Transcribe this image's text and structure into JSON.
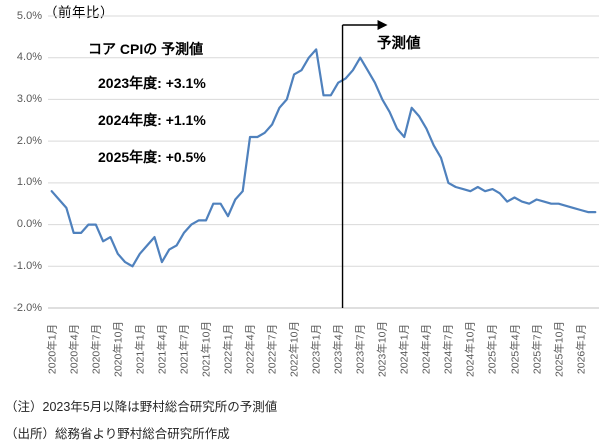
{
  "title": "（前年比）",
  "annotation": {
    "heading": "コア CPIの 予測値",
    "lines": [
      "2023年度: +3.1%",
      "2024年度: +1.1%",
      "2025年度: +0.5%"
    ]
  },
  "forecast_label": "予測値",
  "notes": [
    "（注）2023年5月以降は野村総合研究所の予測値",
    "（出所）総務省より野村総合研究所作成"
  ],
  "colors": {
    "line": "#4F81BD",
    "gridline": "#D9D9D9",
    "axis_line": "#BFBFBF",
    "axis_text": "#595959",
    "forecast_marker": "#000000"
  },
  "chart_data": {
    "type": "line",
    "title": "（前年比）",
    "ylabel": "前年比（%）",
    "ylim": [
      -2.0,
      5.0
    ],
    "grid": "horizontal",
    "y_ticks": [
      "5.0%",
      "4.0%",
      "3.0%",
      "2.0%",
      "1.0%",
      "0.0%",
      "-1.0%",
      "-2.0%"
    ],
    "y_tick_values": [
      5.0,
      4.0,
      3.0,
      2.0,
      1.0,
      0.0,
      -1.0,
      -2.0
    ],
    "x_start": "2020-01",
    "x_end": "2026-03",
    "x_tick_labels": [
      "2020年1月",
      "2020年4月",
      "2020年7月",
      "2020年10月",
      "2021年1月",
      "2021年4月",
      "2021年7月",
      "2021年10月",
      "2022年1月",
      "2022年4月",
      "2022年7月",
      "2022年10月",
      "2023年1月",
      "2023年4月",
      "2023年7月",
      "2023年10月",
      "2024年1月",
      "2024年4月",
      "2024年7月",
      "2024年10月",
      "2025年1月",
      "2025年4月",
      "2025年7月",
      "2025年10月",
      "2026年1月"
    ],
    "x_tick_every_months": 3,
    "forecast_start": "2023-05",
    "series": [
      {
        "name": "コアCPI（前年比）",
        "values": [
          0.8,
          0.6,
          0.4,
          -0.2,
          -0.2,
          0.0,
          0.0,
          -0.4,
          -0.3,
          -0.7,
          -0.9,
          -1.0,
          -0.7,
          -0.5,
          -0.3,
          -0.9,
          -0.6,
          -0.5,
          -0.2,
          0.0,
          0.1,
          0.1,
          0.5,
          0.5,
          0.2,
          0.6,
          0.8,
          2.1,
          2.1,
          2.2,
          2.4,
          2.8,
          3.0,
          3.6,
          3.7,
          4.0,
          4.2,
          3.1,
          3.1,
          3.4,
          3.5,
          3.7,
          4.0,
          3.7,
          3.4,
          3.0,
          2.7,
          2.3,
          2.1,
          2.8,
          2.6,
          2.3,
          1.9,
          1.6,
          1.0,
          0.9,
          0.85,
          0.8,
          0.9,
          0.8,
          0.85,
          0.75,
          0.55,
          0.65,
          0.55,
          0.5,
          0.6,
          0.55,
          0.5,
          0.5,
          0.45,
          0.4,
          0.35,
          0.3,
          0.3
        ]
      }
    ]
  }
}
